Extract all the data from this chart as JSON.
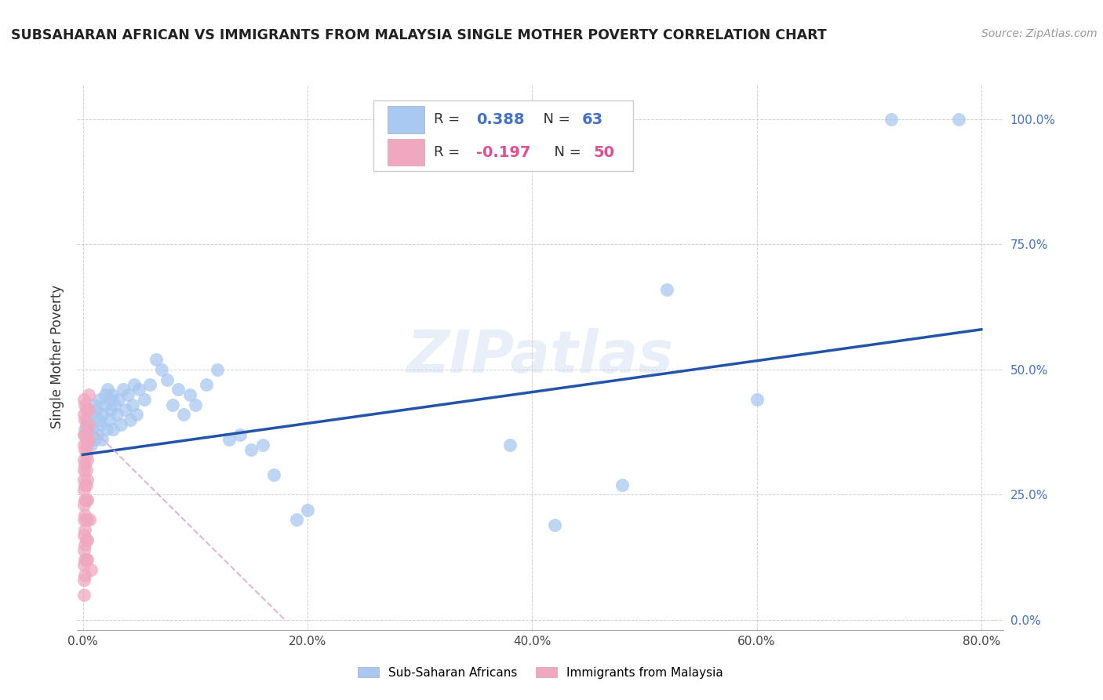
{
  "title": "SUBSAHARAN AFRICAN VS IMMIGRANTS FROM MALAYSIA SINGLE MOTHER POVERTY CORRELATION CHART",
  "source": "Source: ZipAtlas.com",
  "xlabel_ticks": [
    "0.0%",
    "20.0%",
    "40.0%",
    "60.0%",
    "80.0%"
  ],
  "ylabel_ticks": [
    "0.0%",
    "25.0%",
    "50.0%",
    "75.0%",
    "100.0%"
  ],
  "xlim": [
    -0.005,
    0.82
  ],
  "ylim": [
    -0.02,
    1.07
  ],
  "ylabel": "Single Mother Poverty",
  "blue_color": "#a8c8f0",
  "blue_line_color": "#2255aa",
  "pink_color": "#f0a8c0",
  "pink_line_color": "#c04080",
  "pink_line_dash_color": "#e0a8c8",
  "watermark_text": "ZIPatlas",
  "blue_scatter": [
    [
      0.002,
      0.38
    ],
    [
      0.003,
      0.36
    ],
    [
      0.004,
      0.4
    ],
    [
      0.005,
      0.37
    ],
    [
      0.006,
      0.39
    ],
    [
      0.007,
      0.35
    ],
    [
      0.008,
      0.41
    ],
    [
      0.009,
      0.38
    ],
    [
      0.01,
      0.43
    ],
    [
      0.011,
      0.36
    ],
    [
      0.012,
      0.42
    ],
    [
      0.013,
      0.37
    ],
    [
      0.014,
      0.4
    ],
    [
      0.015,
      0.44
    ],
    [
      0.016,
      0.39
    ],
    [
      0.017,
      0.36
    ],
    [
      0.018,
      0.41
    ],
    [
      0.019,
      0.43
    ],
    [
      0.02,
      0.45
    ],
    [
      0.021,
      0.38
    ],
    [
      0.022,
      0.46
    ],
    [
      0.023,
      0.4
    ],
    [
      0.024,
      0.44
    ],
    [
      0.025,
      0.42
    ],
    [
      0.026,
      0.45
    ],
    [
      0.027,
      0.38
    ],
    [
      0.028,
      0.43
    ],
    [
      0.03,
      0.41
    ],
    [
      0.032,
      0.44
    ],
    [
      0.034,
      0.39
    ],
    [
      0.036,
      0.46
    ],
    [
      0.038,
      0.42
    ],
    [
      0.04,
      0.45
    ],
    [
      0.042,
      0.4
    ],
    [
      0.044,
      0.43
    ],
    [
      0.046,
      0.47
    ],
    [
      0.048,
      0.41
    ],
    [
      0.05,
      0.46
    ],
    [
      0.055,
      0.44
    ],
    [
      0.06,
      0.47
    ],
    [
      0.065,
      0.52
    ],
    [
      0.07,
      0.5
    ],
    [
      0.075,
      0.48
    ],
    [
      0.08,
      0.43
    ],
    [
      0.085,
      0.46
    ],
    [
      0.09,
      0.41
    ],
    [
      0.095,
      0.45
    ],
    [
      0.1,
      0.43
    ],
    [
      0.11,
      0.47
    ],
    [
      0.12,
      0.5
    ],
    [
      0.13,
      0.36
    ],
    [
      0.14,
      0.37
    ],
    [
      0.15,
      0.34
    ],
    [
      0.16,
      0.35
    ],
    [
      0.17,
      0.29
    ],
    [
      0.19,
      0.2
    ],
    [
      0.2,
      0.22
    ],
    [
      0.38,
      0.35
    ],
    [
      0.42,
      0.19
    ],
    [
      0.48,
      0.27
    ],
    [
      0.52,
      0.66
    ],
    [
      0.6,
      0.44
    ],
    [
      0.72,
      1.0
    ],
    [
      0.78,
      1.0
    ]
  ],
  "pink_scatter": [
    [
      0.001,
      0.44
    ],
    [
      0.001,
      0.41
    ],
    [
      0.001,
      0.37
    ],
    [
      0.001,
      0.35
    ],
    [
      0.001,
      0.32
    ],
    [
      0.001,
      0.3
    ],
    [
      0.001,
      0.28
    ],
    [
      0.001,
      0.26
    ],
    [
      0.001,
      0.23
    ],
    [
      0.001,
      0.2
    ],
    [
      0.001,
      0.17
    ],
    [
      0.001,
      0.14
    ],
    [
      0.001,
      0.11
    ],
    [
      0.001,
      0.08
    ],
    [
      0.001,
      0.05
    ],
    [
      0.002,
      0.43
    ],
    [
      0.002,
      0.4
    ],
    [
      0.002,
      0.37
    ],
    [
      0.002,
      0.34
    ],
    [
      0.002,
      0.31
    ],
    [
      0.002,
      0.27
    ],
    [
      0.002,
      0.24
    ],
    [
      0.002,
      0.21
    ],
    [
      0.002,
      0.18
    ],
    [
      0.002,
      0.15
    ],
    [
      0.002,
      0.12
    ],
    [
      0.002,
      0.09
    ],
    [
      0.003,
      0.42
    ],
    [
      0.003,
      0.39
    ],
    [
      0.003,
      0.36
    ],
    [
      0.003,
      0.33
    ],
    [
      0.003,
      0.3
    ],
    [
      0.003,
      0.27
    ],
    [
      0.003,
      0.24
    ],
    [
      0.003,
      0.2
    ],
    [
      0.003,
      0.16
    ],
    [
      0.003,
      0.12
    ],
    [
      0.004,
      0.38
    ],
    [
      0.004,
      0.35
    ],
    [
      0.004,
      0.32
    ],
    [
      0.004,
      0.28
    ],
    [
      0.004,
      0.24
    ],
    [
      0.004,
      0.2
    ],
    [
      0.004,
      0.16
    ],
    [
      0.004,
      0.12
    ],
    [
      0.005,
      0.45
    ],
    [
      0.005,
      0.42
    ],
    [
      0.005,
      0.39
    ],
    [
      0.005,
      0.36
    ],
    [
      0.006,
      0.2
    ],
    [
      0.007,
      0.1
    ]
  ],
  "blue_line_x": [
    0.0,
    0.8
  ],
  "blue_line_y": [
    0.33,
    0.58
  ],
  "pink_line_x": [
    0.0,
    0.18
  ],
  "pink_line_y": [
    0.4,
    0.0
  ]
}
